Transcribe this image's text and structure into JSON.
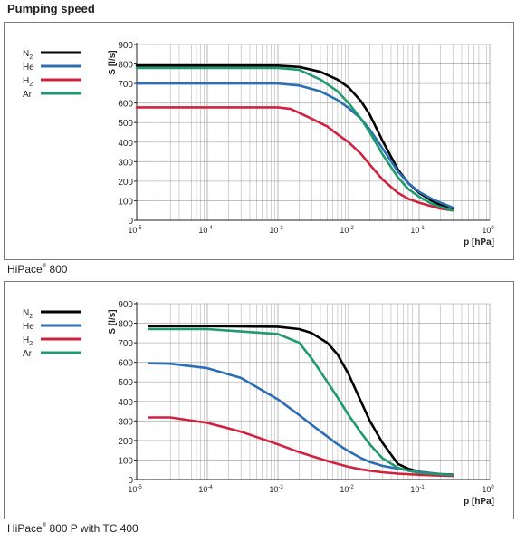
{
  "page_title": "Pumping speed",
  "colors": {
    "N2": "#000000",
    "He": "#2c6eb5",
    "H2": "#d0223f",
    "Ar": "#1f9a6e",
    "grid": "#b4b4b4"
  },
  "chart_data": [
    {
      "type": "line",
      "caption": {
        "name": "HiPace",
        "mark": "®",
        "rest": " 800"
      },
      "ylabel": "S [l/s]",
      "xlabel": "p [hPa]",
      "x_scale": "log",
      "xlim": [
        1e-05,
        1
      ],
      "ylim": [
        0,
        900
      ],
      "grid": true,
      "legend_position": "top-left",
      "yticks": [
        "0",
        "100",
        "200",
        "300",
        "400",
        "500",
        "600",
        "700",
        "800",
        "900"
      ],
      "xticks": [
        {
          "base": "10",
          "exp": "-5"
        },
        {
          "base": "10",
          "exp": "-4"
        },
        {
          "base": "10",
          "exp": "-3"
        },
        {
          "base": "10",
          "exp": "-2"
        },
        {
          "base": "10",
          "exp": "-1"
        },
        {
          "base": "10",
          "exp": "0"
        }
      ],
      "series": [
        {
          "key": "N2",
          "name": "N",
          "sub": "2",
          "x": [
            1e-05,
            0.0001,
            0.001,
            0.002,
            0.004,
            0.007,
            0.01,
            0.015,
            0.02,
            0.03,
            0.05,
            0.07,
            0.1,
            0.15,
            0.2,
            0.3
          ],
          "y": [
            792,
            792,
            792,
            785,
            760,
            720,
            680,
            610,
            540,
            410,
            260,
            190,
            140,
            100,
            78,
            58
          ]
        },
        {
          "key": "He",
          "name": "He",
          "x": [
            1e-05,
            0.0001,
            0.001,
            0.002,
            0.004,
            0.007,
            0.01,
            0.015,
            0.02,
            0.03,
            0.05,
            0.07,
            0.1,
            0.15,
            0.2,
            0.3
          ],
          "y": [
            700,
            700,
            700,
            690,
            660,
            615,
            575,
            520,
            465,
            370,
            250,
            190,
            145,
            110,
            90,
            65
          ]
        },
        {
          "key": "H2",
          "name": "H",
          "sub": "2",
          "x": [
            1e-05,
            0.0001,
            0.001,
            0.0015,
            0.002,
            0.003,
            0.005,
            0.007,
            0.01,
            0.015,
            0.02,
            0.03,
            0.05,
            0.07,
            0.1,
            0.15,
            0.2,
            0.3
          ],
          "y": [
            578,
            578,
            578,
            570,
            550,
            520,
            480,
            440,
            400,
            340,
            285,
            210,
            140,
            110,
            90,
            72,
            60,
            50
          ]
        },
        {
          "key": "Ar",
          "name": "Ar",
          "x": [
            1e-05,
            0.0001,
            0.001,
            0.002,
            0.004,
            0.007,
            0.01,
            0.015,
            0.02,
            0.03,
            0.05,
            0.07,
            0.1,
            0.15,
            0.2,
            0.3
          ],
          "y": [
            780,
            780,
            780,
            770,
            720,
            660,
            600,
            520,
            450,
            340,
            220,
            160,
            120,
            85,
            68,
            50
          ]
        }
      ]
    },
    {
      "type": "line",
      "caption": {
        "name": "HiPace",
        "mark": "®",
        "rest": " 800 P with TC 400"
      },
      "ylabel": "S [l/s]",
      "xlabel": "p [hPa]",
      "x_scale": "log",
      "xlim": [
        1e-05,
        1
      ],
      "ylim": [
        0,
        900
      ],
      "grid": true,
      "legend_position": "top-left",
      "yticks": [
        "0",
        "100",
        "200",
        "300",
        "400",
        "500",
        "600",
        "700",
        "800",
        "900"
      ],
      "xticks": [
        {
          "base": "10",
          "exp": "-5"
        },
        {
          "base": "10",
          "exp": "-4"
        },
        {
          "base": "10",
          "exp": "-3"
        },
        {
          "base": "10",
          "exp": "-2"
        },
        {
          "base": "10",
          "exp": "-1"
        },
        {
          "base": "10",
          "exp": "0"
        }
      ],
      "series": [
        {
          "key": "N2",
          "name": "N",
          "sub": "2",
          "x": [
            1.5e-05,
            0.0001,
            0.001,
            0.002,
            0.003,
            0.005,
            0.007,
            0.01,
            0.015,
            0.02,
            0.03,
            0.05,
            0.07,
            0.1,
            0.15,
            0.2,
            0.3
          ],
          "y": [
            785,
            785,
            782,
            770,
            750,
            700,
            640,
            540,
            400,
            300,
            190,
            80,
            55,
            40,
            32,
            28,
            25
          ]
        },
        {
          "key": "He",
          "name": "He",
          "x": [
            1.5e-05,
            3e-05,
            0.0001,
            0.0003,
            0.001,
            0.002,
            0.003,
            0.005,
            0.007,
            0.01,
            0.015,
            0.02,
            0.03,
            0.05,
            0.1,
            0.2,
            0.3
          ],
          "y": [
            595,
            593,
            570,
            520,
            410,
            330,
            280,
            220,
            180,
            145,
            110,
            90,
            70,
            55,
            40,
            28,
            25
          ]
        },
        {
          "key": "H2",
          "name": "H",
          "sub": "2",
          "x": [
            1.5e-05,
            3e-05,
            0.0001,
            0.0003,
            0.001,
            0.002,
            0.003,
            0.005,
            0.007,
            0.01,
            0.015,
            0.02,
            0.03,
            0.05,
            0.1,
            0.2,
            0.3
          ],
          "y": [
            318,
            318,
            290,
            245,
            180,
            140,
            120,
            95,
            80,
            65,
            52,
            45,
            37,
            30,
            24,
            20,
            18
          ]
        },
        {
          "key": "Ar",
          "name": "Ar",
          "x": [
            1.5e-05,
            0.0001,
            0.001,
            0.002,
            0.003,
            0.005,
            0.007,
            0.01,
            0.015,
            0.02,
            0.03,
            0.05,
            0.07,
            0.1,
            0.15,
            0.2,
            0.3
          ],
          "y": [
            770,
            770,
            745,
            700,
            620,
            500,
            420,
            330,
            240,
            180,
            110,
            60,
            45,
            35,
            30,
            26,
            23
          ]
        }
      ]
    }
  ]
}
